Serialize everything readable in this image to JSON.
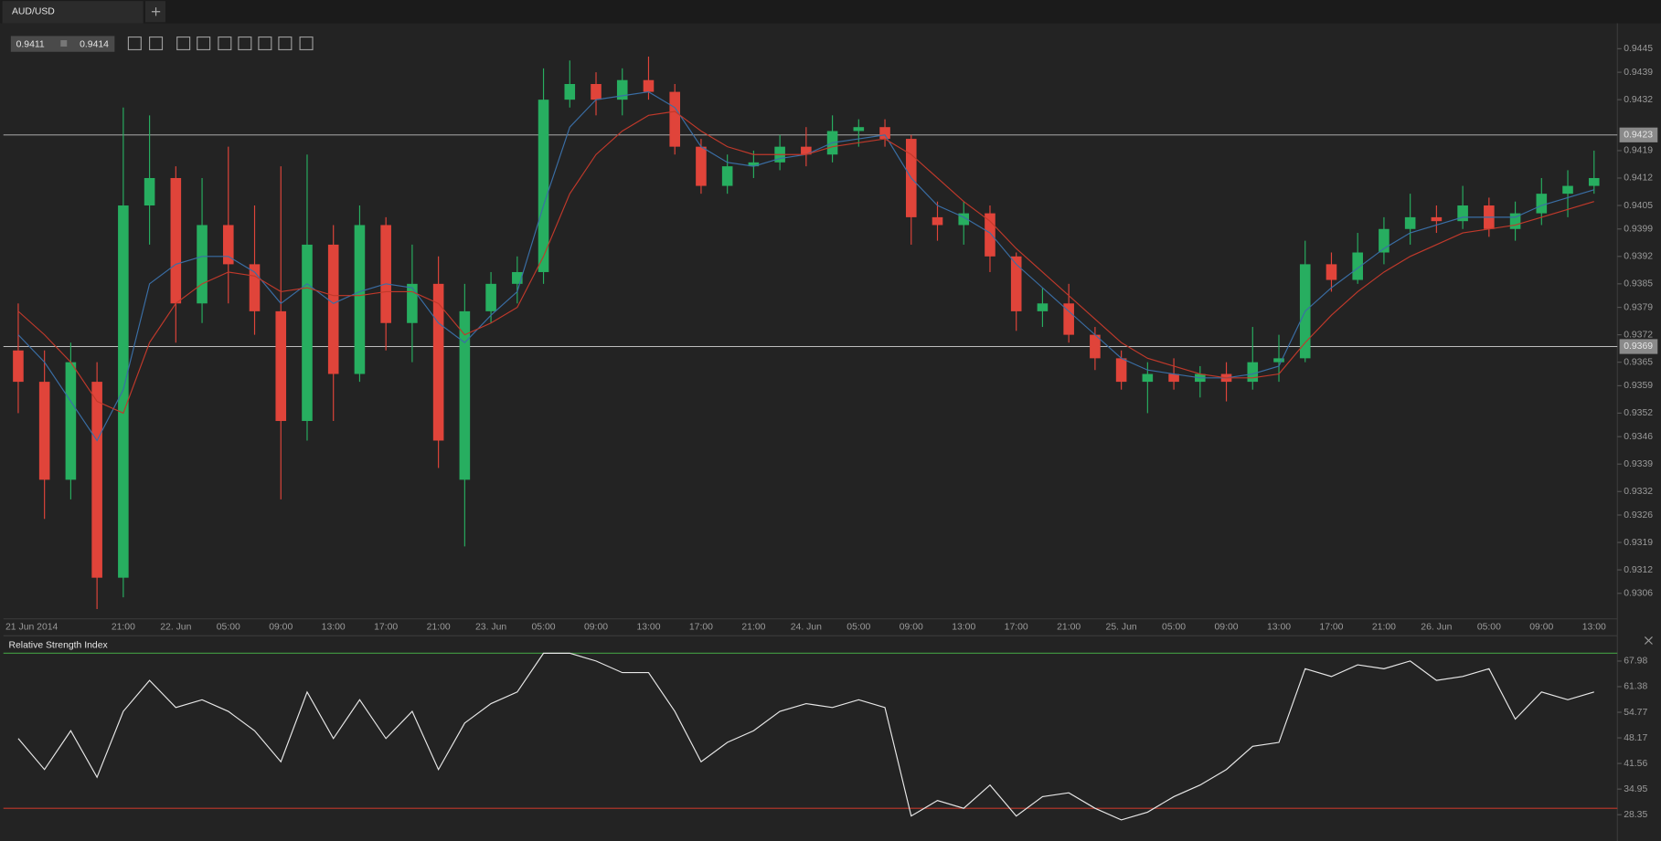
{
  "tab": "AUD/USD",
  "quote": {
    "bid": 0.9411,
    "ask": 0.9414
  },
  "chart_data": [
    {
      "type": "candlestick",
      "x": [
        "21 Jun 2014",
        null,
        null,
        null,
        "21:00",
        null,
        "22. Jun",
        null,
        "05:00",
        null,
        "09:00",
        null,
        "13:00",
        null,
        "17:00",
        null,
        "21:00",
        null,
        "23. Jun",
        null,
        "05:00",
        null,
        "09:00",
        null,
        "13:00",
        null,
        "17:00",
        null,
        "21:00",
        null,
        "24. Jun",
        null,
        "05:00",
        null,
        "09:00",
        null,
        "13:00",
        null,
        "17:00",
        null,
        "21:00",
        null,
        "25. Jun",
        null,
        "05:00",
        null,
        "09:00",
        null,
        "13:00",
        null,
        "17:00",
        null,
        "21:00",
        null,
        "26. Jun",
        null,
        "05:00",
        null,
        "09:00",
        null,
        "13:00"
      ],
      "open": [
        0.9368,
        0.936,
        0.9335,
        0.936,
        0.931,
        0.9405,
        0.9412,
        0.938,
        0.94,
        0.939,
        0.9378,
        0.935,
        0.9395,
        0.9362,
        0.94,
        0.9375,
        0.9385,
        0.9335,
        0.9378,
        0.9385,
        0.9388,
        0.9432,
        0.9436,
        0.9432,
        0.9437,
        0.9434,
        0.942,
        0.941,
        0.9415,
        0.9416,
        0.942,
        0.9418,
        0.9424,
        0.9425,
        0.9422,
        0.9402,
        0.94,
        0.9403,
        0.9392,
        0.9378,
        0.938,
        0.9372,
        0.9366,
        0.936,
        0.9362,
        0.936,
        0.9362,
        0.936,
        0.9365,
        0.9366,
        0.939,
        0.9386,
        0.9393,
        0.9399,
        0.9402,
        0.9401,
        0.9405,
        0.9399,
        0.9403,
        0.9408,
        0.941
      ],
      "high": [
        0.938,
        0.9368,
        0.937,
        0.9365,
        0.943,
        0.9428,
        0.9415,
        0.9412,
        0.942,
        0.9405,
        0.9415,
        0.9418,
        0.94,
        0.9405,
        0.9402,
        0.9395,
        0.9392,
        0.9385,
        0.9388,
        0.9392,
        0.944,
        0.9442,
        0.9439,
        0.944,
        0.9443,
        0.9436,
        0.9422,
        0.9418,
        0.9419,
        0.9423,
        0.9425,
        0.9428,
        0.9427,
        0.9427,
        0.9423,
        0.9406,
        0.9406,
        0.9405,
        0.9393,
        0.9384,
        0.9385,
        0.9374,
        0.9368,
        0.9365,
        0.9366,
        0.9364,
        0.9365,
        0.9374,
        0.9372,
        0.9396,
        0.9393,
        0.9398,
        0.9402,
        0.9408,
        0.9405,
        0.941,
        0.9407,
        0.9406,
        0.9412,
        0.9414,
        0.9419
      ],
      "low": [
        0.9352,
        0.9325,
        0.933,
        0.9302,
        0.9305,
        0.9395,
        0.937,
        0.9375,
        0.938,
        0.9372,
        0.933,
        0.9345,
        0.935,
        0.936,
        0.9368,
        0.9365,
        0.9338,
        0.9318,
        0.9375,
        0.938,
        0.9385,
        0.943,
        0.9428,
        0.9428,
        0.9432,
        0.9418,
        0.9408,
        0.9408,
        0.9412,
        0.9414,
        0.9415,
        0.9416,
        0.942,
        0.942,
        0.9395,
        0.9396,
        0.9395,
        0.9388,
        0.9373,
        0.9374,
        0.937,
        0.9363,
        0.9358,
        0.9352,
        0.9358,
        0.9356,
        0.9355,
        0.9358,
        0.936,
        0.9365,
        0.9383,
        0.9385,
        0.939,
        0.9395,
        0.9398,
        0.9399,
        0.9397,
        0.9396,
        0.94,
        0.9402,
        0.9408
      ],
      "close": [
        0.936,
        0.9335,
        0.9365,
        0.931,
        0.9405,
        0.9412,
        0.938,
        0.94,
        0.939,
        0.9378,
        0.935,
        0.9395,
        0.9362,
        0.94,
        0.9375,
        0.9385,
        0.9345,
        0.9378,
        0.9385,
        0.9388,
        0.9432,
        0.9436,
        0.9432,
        0.9437,
        0.9434,
        0.942,
        0.941,
        0.9415,
        0.9416,
        0.942,
        0.9418,
        0.9424,
        0.9425,
        0.9422,
        0.9402,
        0.94,
        0.9403,
        0.9392,
        0.9378,
        0.938,
        0.9372,
        0.9366,
        0.936,
        0.9362,
        0.936,
        0.9362,
        0.936,
        0.9365,
        0.9366,
        0.939,
        0.9386,
        0.9393,
        0.9399,
        0.9402,
        0.9401,
        0.9405,
        0.9399,
        0.9403,
        0.9408,
        0.941,
        0.9412
      ],
      "up_color": "#27ae60",
      "down_color": "#e0443a",
      "series": [
        {
          "color": "#3a6ea5",
          "values": [
            0.9372,
            0.9365,
            0.9355,
            0.9345,
            0.9358,
            0.9385,
            0.939,
            0.9392,
            0.9392,
            0.9388,
            0.938,
            0.9385,
            0.938,
            0.9383,
            0.9385,
            0.9384,
            0.9375,
            0.937,
            0.9377,
            0.9383,
            0.9405,
            0.9425,
            0.9432,
            0.9433,
            0.9434,
            0.943,
            0.942,
            0.9416,
            0.9415,
            0.9417,
            0.9418,
            0.9421,
            0.9422,
            0.9423,
            0.9412,
            0.9405,
            0.9402,
            0.9398,
            0.939,
            0.9384,
            0.9378,
            0.9372,
            0.9366,
            0.9363,
            0.9362,
            0.9361,
            0.9361,
            0.9362,
            0.9364,
            0.9378,
            0.9384,
            0.9389,
            0.9394,
            0.9398,
            0.94,
            0.9402,
            0.9402,
            0.9402,
            0.9405,
            0.9407,
            0.9409
          ]
        },
        {
          "color": "#c0392b",
          "values": [
            0.9378,
            0.9372,
            0.9365,
            0.9355,
            0.9352,
            0.937,
            0.938,
            0.9385,
            0.9388,
            0.9387,
            0.9383,
            0.9384,
            0.9382,
            0.9382,
            0.9383,
            0.9383,
            0.938,
            0.9372,
            0.9375,
            0.9379,
            0.9392,
            0.9408,
            0.9418,
            0.9424,
            0.9428,
            0.9429,
            0.9424,
            0.942,
            0.9418,
            0.9418,
            0.9418,
            0.942,
            0.9421,
            0.9422,
            0.9418,
            0.9412,
            0.9406,
            0.9401,
            0.9394,
            0.9388,
            0.9382,
            0.9376,
            0.937,
            0.9366,
            0.9364,
            0.9362,
            0.9361,
            0.9361,
            0.9362,
            0.937,
            0.9377,
            0.9383,
            0.9388,
            0.9392,
            0.9395,
            0.9398,
            0.9399,
            0.94,
            0.9402,
            0.9404,
            0.9406
          ]
        }
      ],
      "price_lines": [
        0.9423,
        0.9369
      ],
      "ylim": [
        0.92995,
        0.94515
      ],
      "yticks": [
        0.9445,
        0.9439,
        0.9432,
        0.9419,
        0.9412,
        0.9405,
        0.9399,
        0.9392,
        0.9385,
        0.9379,
        0.9372,
        0.9365,
        0.9359,
        0.9352,
        0.9346,
        0.9339,
        0.9332,
        0.9326,
        0.9319,
        0.9312,
        0.9306
      ]
    },
    {
      "type": "line",
      "title": "Relative Strength Index",
      "color": "#e8e8e8",
      "values": [
        48,
        40,
        50,
        38,
        55,
        63,
        56,
        58,
        55,
        50,
        42,
        60,
        48,
        58,
        48,
        55,
        40,
        52,
        57,
        60,
        70,
        70,
        68,
        65,
        65,
        55,
        42,
        47,
        50,
        55,
        57,
        56,
        58,
        56,
        28,
        32,
        30,
        36,
        28,
        33,
        34,
        30,
        27,
        29,
        33,
        36,
        40,
        46,
        47,
        66,
        64,
        67,
        66,
        68,
        63,
        64,
        66,
        53,
        60,
        58,
        60
      ],
      "levels": [
        {
          "value": 70,
          "color": "#3f8f3f"
        },
        {
          "value": 30,
          "color": "#c0392b"
        }
      ],
      "ylim": [
        21.56,
        73.96
      ],
      "yticks": [
        67.98,
        61.38,
        54.77,
        48.17,
        41.56,
        34.95,
        28.35
      ]
    }
  ]
}
